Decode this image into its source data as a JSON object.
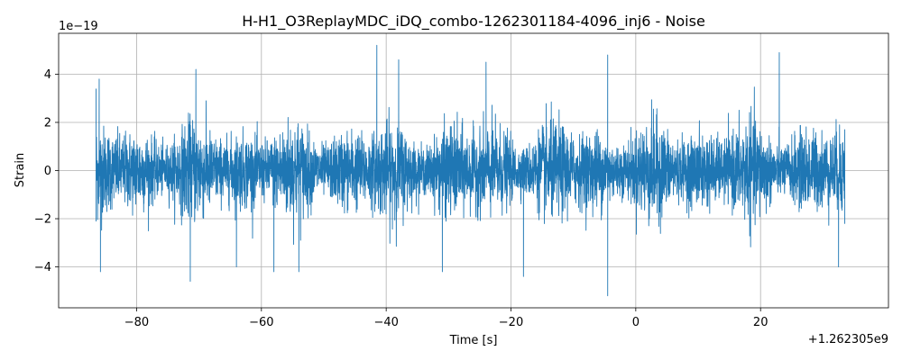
{
  "chart_data": {
    "type": "line",
    "title": "H-H1_O3ReplayMDC_iDQ_combo-1262301184-4096_inj6 - Noise",
    "xlabel": "Time [s]",
    "ylabel": "Strain",
    "x_offset_label": "+1.262305e9",
    "y_scale_label": "1e−19",
    "xlim": [
      -92.5,
      40.5
    ],
    "ylim": [
      -5.7,
      5.7
    ],
    "x_ticks": [
      -80,
      -60,
      -40,
      -20,
      0,
      20
    ],
    "x_tick_labels": [
      "−80",
      "−60",
      "−40",
      "−20",
      "0",
      "20"
    ],
    "y_ticks": [
      -4,
      -2,
      0,
      2,
      4
    ],
    "y_tick_labels": [
      "−4",
      "−2",
      "0",
      "2",
      "4"
    ],
    "grid": true,
    "series": [
      {
        "color": "#1f77b4",
        "x_range": [
          -86.5,
          33.5
        ],
        "peak_points": [
          {
            "x": -86.5,
            "y": 3.4
          },
          {
            "x": -86.5,
            "y": -2.1
          },
          {
            "x": -86.0,
            "y": 3.8
          },
          {
            "x": -85.8,
            "y": -4.2
          },
          {
            "x": -71.4,
            "y": -4.6
          },
          {
            "x": -70.5,
            "y": 4.2
          },
          {
            "x": -64.0,
            "y": -4.0
          },
          {
            "x": -58.0,
            "y": -4.2
          },
          {
            "x": -54.0,
            "y": -4.2
          },
          {
            "x": -41.5,
            "y": 5.2
          },
          {
            "x": -38.0,
            "y": 4.6
          },
          {
            "x": -31.0,
            "y": -4.2
          },
          {
            "x": -24.0,
            "y": 4.5
          },
          {
            "x": -18.0,
            "y": -4.4
          },
          {
            "x": -4.5,
            "y": 4.8
          },
          {
            "x": -4.5,
            "y": -5.2
          },
          {
            "x": 23.0,
            "y": 4.9
          },
          {
            "x": 32.5,
            "y": -4.0
          },
          {
            "x": 33.5,
            "y": 1.7
          },
          {
            "x": 33.5,
            "y": -2.2
          }
        ],
        "typical_amplitude": 1.0
      }
    ]
  }
}
